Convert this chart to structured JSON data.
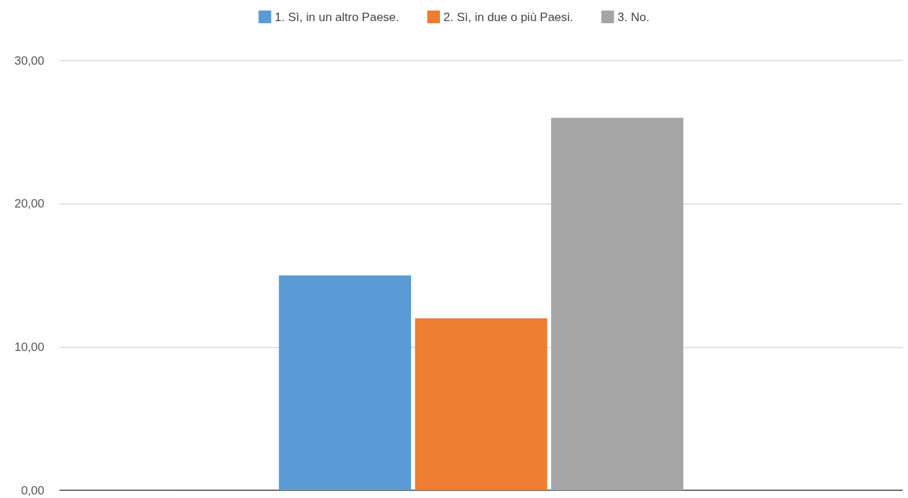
{
  "chart_data": {
    "type": "bar",
    "categories": [
      null
    ],
    "series": [
      {
        "name": "1. Sì, in un altro Paese.",
        "color": "#5b9bd5",
        "values": [
          15
        ]
      },
      {
        "name": "2. Sì, in due o più Paesi.",
        "color": "#ed7d31",
        "values": [
          12
        ]
      },
      {
        "name": "3. No.",
        "color": "#a5a5a5",
        "values": [
          26
        ]
      }
    ],
    "ylim": [
      0,
      30
    ],
    "yticks": [
      {
        "value": 0,
        "label": "0,00"
      },
      {
        "value": 10,
        "label": "10,00"
      },
      {
        "value": 20,
        "label": "20,00"
      },
      {
        "value": 30,
        "label": "30,00"
      }
    ],
    "grid": "y",
    "legend": "top"
  }
}
